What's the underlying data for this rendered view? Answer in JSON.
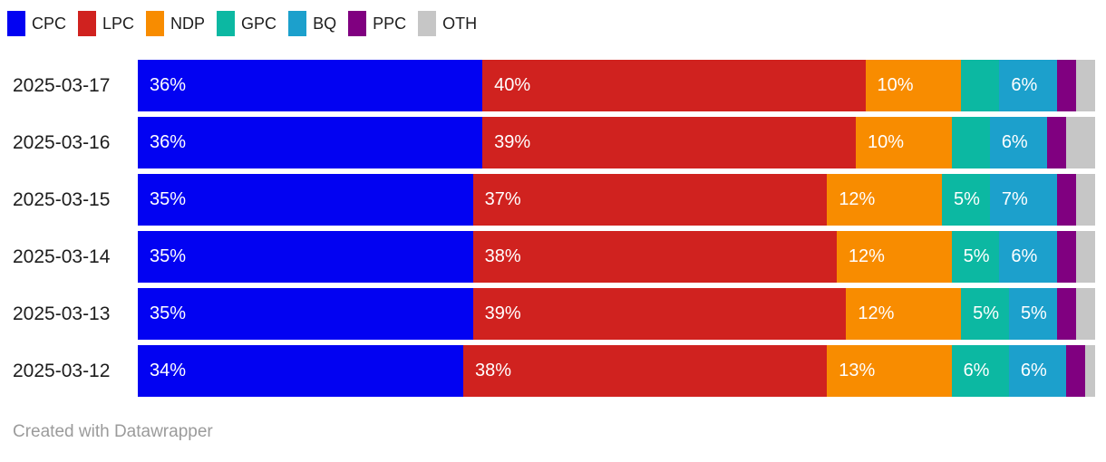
{
  "legend": {
    "items": [
      {
        "label": "CPC",
        "color": "#0202F2"
      },
      {
        "label": "LPC",
        "color": "#D0221F"
      },
      {
        "label": "NDP",
        "color": "#F88C00"
      },
      {
        "label": "GPC",
        "color": "#0CB8A2"
      },
      {
        "label": "BQ",
        "color": "#1CA0CC"
      },
      {
        "label": "PPC",
        "color": "#800080"
      },
      {
        "label": "OTH",
        "color": "#C6C6C6"
      }
    ]
  },
  "chart_data": {
    "type": "bar",
    "stacked": true,
    "orientation": "horizontal",
    "unit": "%",
    "xlim": [
      0,
      100
    ],
    "min_label_value": 5,
    "categories": [
      "2025-03-17",
      "2025-03-16",
      "2025-03-15",
      "2025-03-14",
      "2025-03-13",
      "2025-03-12"
    ],
    "series": [
      {
        "name": "CPC",
        "color": "#0202F2",
        "values": [
          36,
          36,
          35,
          35,
          35,
          34
        ]
      },
      {
        "name": "LPC",
        "color": "#D0221F",
        "values": [
          40,
          39,
          37,
          38,
          39,
          38
        ]
      },
      {
        "name": "NDP",
        "color": "#F88C00",
        "values": [
          10,
          10,
          12,
          12,
          12,
          13
        ]
      },
      {
        "name": "GPC",
        "color": "#0CB8A2",
        "values": [
          4,
          4,
          5,
          5,
          5,
          6
        ]
      },
      {
        "name": "BQ",
        "color": "#1CA0CC",
        "values": [
          6,
          6,
          7,
          6,
          5,
          6
        ]
      },
      {
        "name": "PPC",
        "color": "#800080",
        "values": [
          2,
          2,
          2,
          2,
          2,
          2
        ]
      },
      {
        "name": "OTH",
        "color": "#C6C6C6",
        "values": [
          2,
          3,
          2,
          2,
          2,
          1
        ]
      }
    ]
  },
  "footer": {
    "credit": "Created with Datawrapper"
  }
}
